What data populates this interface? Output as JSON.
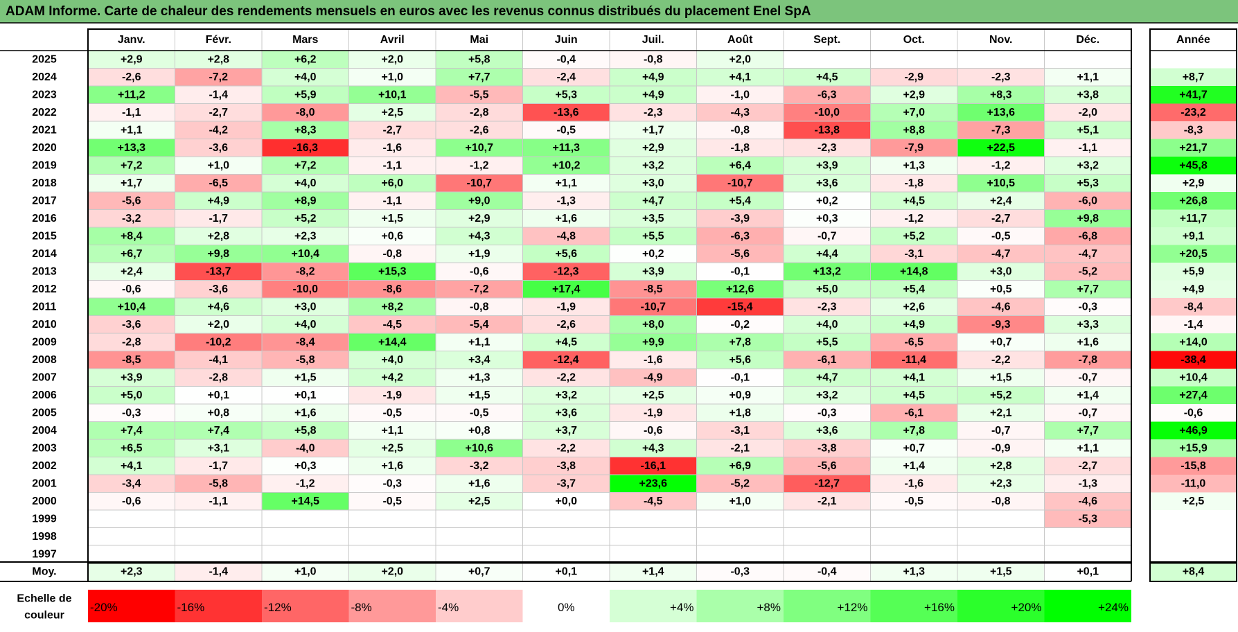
{
  "title": "ADAM Informe. Carte de chaleur des rendements mensuels en euros avec les revenus connus distribués du placement Enel SpA",
  "chart_data": {
    "type": "heatmap",
    "title": "ADAM Informe. Carte de chaleur des rendements mensuels en euros avec les revenus connus distribués du placement Enel SpA",
    "columns": [
      "Janv.",
      "Févr.",
      "Mars",
      "Avril",
      "Mai",
      "Juin",
      "Juil.",
      "Août",
      "Sept.",
      "Oct.",
      "Nov.",
      "Déc."
    ],
    "year_label": "Année",
    "rows": [
      {
        "year": "2025",
        "months": [
          "+2,9",
          "+2,8",
          "+6,2",
          "+2,0",
          "+5,8",
          "-0,4",
          "-0,8",
          "+2,0",
          "",
          "",
          "",
          ""
        ],
        "annual": ""
      },
      {
        "year": "2024",
        "months": [
          "-2,6",
          "-7,2",
          "+4,0",
          "+1,0",
          "+7,7",
          "-2,4",
          "+4,9",
          "+4,1",
          "+4,5",
          "-2,9",
          "-2,3",
          "+1,1"
        ],
        "annual": "+8,7"
      },
      {
        "year": "2023",
        "months": [
          "+11,2",
          "-1,4",
          "+5,9",
          "+10,1",
          "-5,5",
          "+5,3",
          "+4,9",
          "-1,0",
          "-6,3",
          "+2,9",
          "+8,3",
          "+3,8"
        ],
        "annual": "+41,7"
      },
      {
        "year": "2022",
        "months": [
          "-1,1",
          "-2,7",
          "-8,0",
          "+2,5",
          "-2,8",
          "-13,6",
          "-2,3",
          "-4,3",
          "-10,0",
          "+7,0",
          "+13,6",
          "-2,0"
        ],
        "annual": "-23,2"
      },
      {
        "year": "2021",
        "months": [
          "+1,1",
          "-4,2",
          "+8,3",
          "-2,7",
          "-2,6",
          "-0,5",
          "+1,7",
          "-0,8",
          "-13,8",
          "+8,8",
          "-7,3",
          "+5,1"
        ],
        "annual": "-8,3"
      },
      {
        "year": "2020",
        "months": [
          "+13,3",
          "-3,6",
          "-16,3",
          "-1,6",
          "+10,7",
          "+11,3",
          "+2,9",
          "-1,8",
          "-2,3",
          "-7,9",
          "+22,5",
          "-1,1"
        ],
        "annual": "+21,7"
      },
      {
        "year": "2019",
        "months": [
          "+7,2",
          "+1,0",
          "+7,2",
          "-1,1",
          "-1,2",
          "+10,2",
          "+3,2",
          "+6,4",
          "+3,9",
          "+1,3",
          "-1,2",
          "+3,2"
        ],
        "annual": "+45,8"
      },
      {
        "year": "2018",
        "months": [
          "+1,7",
          "-6,5",
          "+4,0",
          "+6,0",
          "-10,7",
          "+1,1",
          "+3,0",
          "-10,7",
          "+3,6",
          "-1,8",
          "+10,5",
          "+5,3"
        ],
        "annual": "+2,9"
      },
      {
        "year": "2017",
        "months": [
          "-5,6",
          "+4,9",
          "+8,9",
          "-1,1",
          "+9,0",
          "-1,3",
          "+4,7",
          "+5,4",
          "+0,2",
          "+4,5",
          "+2,4",
          "-6,0"
        ],
        "annual": "+26,8"
      },
      {
        "year": "2016",
        "months": [
          "-3,2",
          "-1,7",
          "+5,2",
          "+1,5",
          "+2,9",
          "+1,6",
          "+3,5",
          "-3,9",
          "+0,3",
          "-1,2",
          "-2,7",
          "+9,8"
        ],
        "annual": "+11,7"
      },
      {
        "year": "2015",
        "months": [
          "+8,4",
          "+2,8",
          "+2,3",
          "+0,6",
          "+4,3",
          "-4,8",
          "+5,5",
          "-6,3",
          "-0,7",
          "+5,2",
          "-0,5",
          "-6,8"
        ],
        "annual": "+9,1"
      },
      {
        "year": "2014",
        "months": [
          "+6,7",
          "+9,8",
          "+10,4",
          "-0,8",
          "+1,9",
          "+5,6",
          "+0,2",
          "-5,6",
          "+4,4",
          "-3,1",
          "-4,7",
          "-4,7"
        ],
        "annual": "+20,5"
      },
      {
        "year": "2013",
        "months": [
          "+2,4",
          "-13,7",
          "-8,2",
          "+15,3",
          "-0,6",
          "-12,3",
          "+3,9",
          "-0,1",
          "+13,2",
          "+14,8",
          "+3,0",
          "-5,2"
        ],
        "annual": "+5,9"
      },
      {
        "year": "2012",
        "months": [
          "-0,6",
          "-3,6",
          "-10,0",
          "-8,6",
          "-7,2",
          "+17,4",
          "-8,5",
          "+12,6",
          "+5,0",
          "+5,4",
          "+0,5",
          "+7,7"
        ],
        "annual": "+4,9"
      },
      {
        "year": "2011",
        "months": [
          "+10,4",
          "+4,6",
          "+3,0",
          "+8,2",
          "-0,8",
          "-1,9",
          "-10,7",
          "-15,4",
          "-2,3",
          "+2,6",
          "-4,6",
          "-0,3"
        ],
        "annual": "-8,4"
      },
      {
        "year": "2010",
        "months": [
          "-3,6",
          "+2,0",
          "+4,0",
          "-4,5",
          "-5,4",
          "-2,6",
          "+8,0",
          "-0,2",
          "+4,0",
          "+4,9",
          "-9,3",
          "+3,3"
        ],
        "annual": "-1,4"
      },
      {
        "year": "2009",
        "months": [
          "-2,8",
          "-10,2",
          "-8,4",
          "+14,4",
          "+1,1",
          "+4,5",
          "+9,9",
          "+7,8",
          "+5,5",
          "-6,5",
          "+0,7",
          "+1,6"
        ],
        "annual": "+14,0"
      },
      {
        "year": "2008",
        "months": [
          "-8,5",
          "-4,1",
          "-5,8",
          "+4,0",
          "+3,4",
          "-12,4",
          "-1,6",
          "+5,6",
          "-6,1",
          "-11,4",
          "-2,2",
          "-7,8"
        ],
        "annual": "-38,4"
      },
      {
        "year": "2007",
        "months": [
          "+3,9",
          "-2,8",
          "+1,5",
          "+4,2",
          "+1,3",
          "-2,2",
          "-4,9",
          "-0,1",
          "+4,7",
          "+4,1",
          "+1,5",
          "-0,7"
        ],
        "annual": "+10,4"
      },
      {
        "year": "2006",
        "months": [
          "+5,0",
          "+0,1",
          "+0,1",
          "-1,9",
          "+1,5",
          "+3,2",
          "+2,5",
          "+0,9",
          "+3,2",
          "+4,5",
          "+5,2",
          "+1,4"
        ],
        "annual": "+27,4"
      },
      {
        "year": "2005",
        "months": [
          "-0,3",
          "+0,8",
          "+1,6",
          "-0,5",
          "-0,5",
          "+3,6",
          "-1,9",
          "+1,8",
          "-0,3",
          "-6,1",
          "+2,1",
          "-0,7"
        ],
        "annual": "-0,6"
      },
      {
        "year": "2004",
        "months": [
          "+7,4",
          "+7,4",
          "+5,8",
          "+1,1",
          "+0,8",
          "+3,7",
          "-0,6",
          "-3,1",
          "+3,6",
          "+7,8",
          "-0,7",
          "+7,7"
        ],
        "annual": "+46,9"
      },
      {
        "year": "2003",
        "months": [
          "+6,5",
          "+3,1",
          "-4,0",
          "+2,5",
          "+10,6",
          "-2,2",
          "+4,3",
          "-2,1",
          "-3,8",
          "+0,7",
          "-0,9",
          "+1,1"
        ],
        "annual": "+15,9"
      },
      {
        "year": "2002",
        "months": [
          "+4,1",
          "-1,7",
          "+0,3",
          "+1,6",
          "-3,2",
          "-3,8",
          "-16,1",
          "+6,9",
          "-5,6",
          "+1,4",
          "+2,8",
          "-2,7"
        ],
        "annual": "-15,8"
      },
      {
        "year": "2001",
        "months": [
          "-3,4",
          "-5,8",
          "-1,2",
          "-0,3",
          "+1,6",
          "-3,7",
          "+23,6",
          "-5,2",
          "-12,7",
          "-1,6",
          "+2,3",
          "-1,3"
        ],
        "annual": "-11,0"
      },
      {
        "year": "2000",
        "months": [
          "-0,6",
          "-1,1",
          "+14,5",
          "-0,5",
          "+2,5",
          "+0,0",
          "-4,5",
          "+1,0",
          "-2,1",
          "-0,5",
          "-0,8",
          "-4,6"
        ],
        "annual": "+2,5"
      },
      {
        "year": "1999",
        "months": [
          "",
          "",
          "",
          "",
          "",
          "",
          "",
          "",
          "",
          "",
          "",
          "-5,3"
        ],
        "annual": ""
      },
      {
        "year": "1998",
        "months": [
          "",
          "",
          "",
          "",
          "",
          "",
          "",
          "",
          "",
          "",
          "",
          ""
        ],
        "annual": ""
      },
      {
        "year": "1997",
        "months": [
          "",
          "",
          "",
          "",
          "",
          "",
          "",
          "",
          "",
          "",
          "",
          ""
        ],
        "annual": ""
      }
    ],
    "average": {
      "label": "Moy.",
      "months": [
        "+2,3",
        "-1,4",
        "+1,0",
        "+2,0",
        "+0,7",
        "+0,1",
        "+1,4",
        "-0,3",
        "-0,4",
        "+1,3",
        "+1,5",
        "+0,1"
      ],
      "annual": "+8,4"
    },
    "scale": {
      "label_line1": "Echelle de",
      "label_line2": "couleur",
      "steps": [
        "-20%",
        "-16%",
        "-12%",
        "-8%",
        "-4%",
        "0%",
        "+4%",
        "+8%",
        "+12%",
        "+16%",
        "+20%",
        "+24%"
      ],
      "step_values": [
        -20,
        -16,
        -12,
        -8,
        -4,
        0,
        4,
        8,
        12,
        16,
        20,
        24
      ]
    },
    "colors": {
      "negative_max": "#ff0000",
      "neutral": "#ffffff",
      "positive_max": "#00ff00",
      "title_bar": "#7cc47c"
    }
  }
}
